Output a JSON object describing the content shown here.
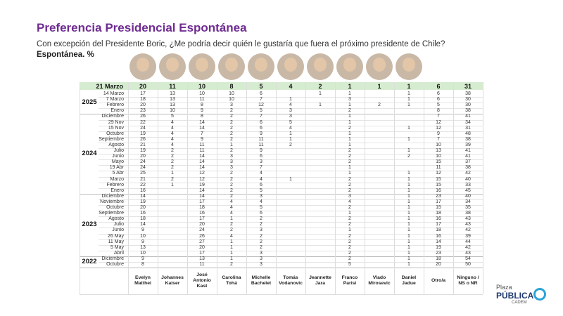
{
  "title": "Preferencia Presidencial Espontánea",
  "subtitle": "Con excepción del Presidente Boric, ¿Me podría decir quién le gustaría que fuera el próximo presidente de Chile?",
  "note": "Espontánea. %",
  "columns": [
    "Evelyn Matthei",
    "Johannes Kaiser",
    "José Antonio Kast",
    "Carolina Tohá",
    "Michelle Bachelet",
    "Tomás Vodanovic",
    "Jeannette Jara",
    "Franco Parisi",
    "Vlado Mirosevic",
    "Daniel Jadue",
    "Otro/a",
    "Ninguno / NS o NR"
  ],
  "highlight": {
    "label": "21 Marzo",
    "values": [
      20,
      11,
      10,
      8,
      5,
      4,
      2,
      1,
      1,
      1,
      6,
      31
    ]
  },
  "groups": [
    {
      "year": "2025",
      "rows": [
        {
          "label": "14 Marzo",
          "values": [
            17,
            13,
            10,
            10,
            6,
            null,
            1,
            1,
            null,
            1,
            6,
            38
          ]
        },
        {
          "label": "7 Marzo",
          "values": [
            18,
            13,
            11,
            10,
            7,
            1,
            null,
            3,
            null,
            1,
            6,
            30
          ]
        },
        {
          "label": "Febrero",
          "values": [
            20,
            13,
            8,
            3,
            12,
            4,
            1,
            1,
            2,
            1,
            5,
            30
          ]
        },
        {
          "label": "Enero",
          "values": [
            23,
            10,
            9,
            2,
            5,
            3,
            null,
            2,
            null,
            null,
            8,
            38
          ]
        }
      ]
    },
    {
      "year": "2024",
      "rows": [
        {
          "label": "Diciembre",
          "values": [
            26,
            5,
            8,
            2,
            7,
            3,
            null,
            1,
            null,
            null,
            7,
            41
          ]
        },
        {
          "label": "29 Nov",
          "values": [
            22,
            4,
            14,
            2,
            6,
            5,
            null,
            1,
            null,
            null,
            12,
            34
          ]
        },
        {
          "label": "15 Nov",
          "values": [
            24,
            4,
            14,
            2,
            6,
            4,
            null,
            2,
            null,
            1,
            12,
            31
          ]
        },
        {
          "label": "Octubre",
          "values": [
            19,
            4,
            7,
            2,
            9,
            1,
            null,
            1,
            null,
            null,
            9,
            48
          ]
        },
        {
          "label": "Septiembre",
          "values": [
            26,
            4,
            9,
            2,
            11,
            1,
            null,
            1,
            null,
            1,
            7,
            38
          ]
        },
        {
          "label": "Agosto",
          "values": [
            21,
            4,
            11,
            1,
            11,
            2,
            null,
            1,
            null,
            null,
            10,
            39
          ]
        },
        {
          "label": "Julio",
          "values": [
            19,
            2,
            11,
            2,
            9,
            null,
            null,
            2,
            null,
            1,
            13,
            41
          ]
        },
        {
          "label": "Junio",
          "values": [
            20,
            2,
            14,
            3,
            6,
            null,
            null,
            2,
            null,
            2,
            10,
            41
          ]
        },
        {
          "label": "Mayo",
          "values": [
            24,
            2,
            14,
            3,
            3,
            null,
            null,
            2,
            null,
            null,
            15,
            37
          ]
        },
        {
          "label": "19 Abr",
          "values": [
            24,
            2,
            14,
            3,
            7,
            null,
            null,
            1,
            null,
            null,
            11,
            38
          ]
        },
        {
          "label": "5 Abr",
          "values": [
            25,
            1,
            12,
            2,
            4,
            null,
            null,
            1,
            null,
            1,
            12,
            42
          ]
        },
        {
          "label": "Marzo",
          "values": [
            21,
            2,
            12,
            2,
            4,
            1,
            null,
            2,
            null,
            1,
            15,
            40
          ]
        },
        {
          "label": "Febrero",
          "values": [
            22,
            1,
            19,
            2,
            6,
            null,
            null,
            2,
            null,
            1,
            15,
            33
          ]
        },
        {
          "label": "Enero",
          "values": [
            16,
            null,
            14,
            2,
            5,
            null,
            null,
            2,
            null,
            1,
            16,
            45
          ]
        }
      ]
    },
    {
      "year": "2023",
      "rows": [
        {
          "label": "Diciembre",
          "values": [
            14,
            null,
            14,
            2,
            3,
            null,
            null,
            3,
            null,
            1,
            23,
            40
          ]
        },
        {
          "label": "Noviembre",
          "values": [
            19,
            null,
            17,
            4,
            4,
            null,
            null,
            4,
            null,
            1,
            17,
            34
          ]
        },
        {
          "label": "Octubre",
          "values": [
            20,
            null,
            18,
            4,
            5,
            null,
            null,
            2,
            null,
            1,
            15,
            35
          ]
        },
        {
          "label": "Septiembre",
          "values": [
            16,
            null,
            16,
            4,
            6,
            null,
            null,
            1,
            null,
            1,
            18,
            38
          ]
        },
        {
          "label": "Agosto",
          "values": [
            18,
            null,
            17,
            1,
            2,
            null,
            null,
            2,
            null,
            1,
            16,
            43
          ]
        },
        {
          "label": "Julio",
          "values": [
            14,
            null,
            20,
            2,
            2,
            null,
            null,
            2,
            null,
            1,
            17,
            43
          ]
        },
        {
          "label": "Junio",
          "values": [
            9,
            null,
            24,
            2,
            3,
            null,
            null,
            1,
            null,
            1,
            18,
            42
          ]
        },
        {
          "label": "26 May",
          "values": [
            10,
            null,
            26,
            4,
            2,
            null,
            null,
            2,
            null,
            1,
            16,
            39
          ]
        },
        {
          "label": "11 May",
          "values": [
            9,
            null,
            27,
            1,
            2,
            null,
            null,
            2,
            null,
            1,
            14,
            44
          ]
        },
        {
          "label": "5 May",
          "values": [
            13,
            null,
            20,
            1,
            2,
            null,
            null,
            2,
            null,
            1,
            19,
            42
          ]
        },
        {
          "label": "Abril",
          "values": [
            10,
            null,
            17,
            1,
            3,
            null,
            null,
            2,
            null,
            1,
            23,
            43
          ]
        }
      ]
    },
    {
      "year": "2022",
      "rows": [
        {
          "label": "Diciembre",
          "values": [
            9,
            null,
            13,
            1,
            3,
            null,
            null,
            2,
            null,
            1,
            18,
            54
          ]
        },
        {
          "label": "Octubre",
          "values": [
            8,
            null,
            11,
            2,
            3,
            null,
            null,
            5,
            null,
            1,
            20,
            50
          ]
        }
      ]
    }
  ],
  "logo": {
    "line1": "Plaza",
    "line2": "PÚBLICA",
    "line3": "CADEM"
  }
}
